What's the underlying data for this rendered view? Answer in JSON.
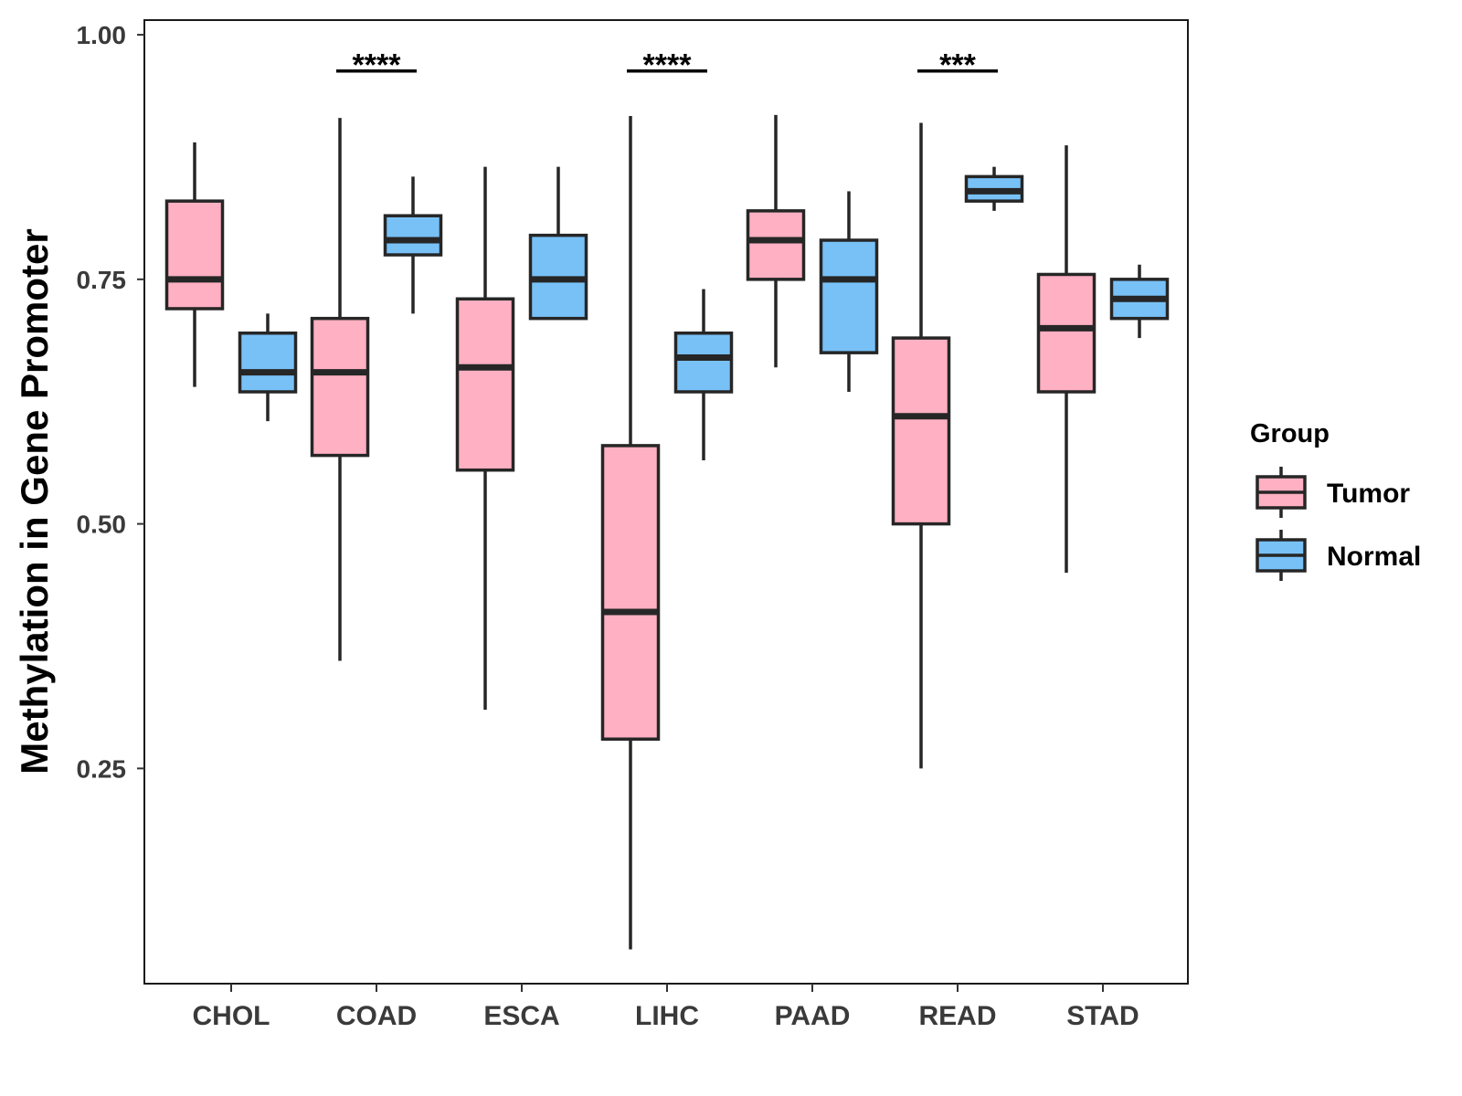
{
  "chart_data": {
    "type": "boxplot",
    "title": "",
    "xlabel": "",
    "ylabel": "Methylation in Gene Promoter",
    "ylim": [
      0.03,
      1.015
    ],
    "yticks": [
      0.25,
      0.5,
      0.75,
      1.0
    ],
    "ytick_labels": [
      "0.25",
      "0.50",
      "0.75",
      "1.00"
    ],
    "categories": [
      "CHOL",
      "COAD",
      "ESCA",
      "LIHC",
      "PAAD",
      "READ",
      "STAD"
    ],
    "series": [
      {
        "name": "Tumor",
        "color": "#FFB0C2",
        "boxes": [
          {
            "category": "CHOL",
            "min": 0.64,
            "q1": 0.72,
            "median": 0.75,
            "q3": 0.83,
            "max": 0.89
          },
          {
            "category": "COAD",
            "min": 0.36,
            "q1": 0.57,
            "median": 0.655,
            "q3": 0.71,
            "max": 0.915
          },
          {
            "category": "ESCA",
            "min": 0.31,
            "q1": 0.555,
            "median": 0.66,
            "q3": 0.73,
            "max": 0.865
          },
          {
            "category": "LIHC",
            "min": 0.065,
            "q1": 0.28,
            "median": 0.41,
            "q3": 0.58,
            "max": 0.917
          },
          {
            "category": "PAAD",
            "min": 0.66,
            "q1": 0.75,
            "median": 0.79,
            "q3": 0.82,
            "max": 0.918
          },
          {
            "category": "READ",
            "min": 0.25,
            "q1": 0.5,
            "median": 0.61,
            "q3": 0.69,
            "max": 0.91
          },
          {
            "category": "STAD",
            "min": 0.45,
            "q1": 0.635,
            "median": 0.7,
            "q3": 0.755,
            "max": 0.887
          }
        ]
      },
      {
        "name": "Normal",
        "color": "#78C1F7",
        "boxes": [
          {
            "category": "CHOL",
            "min": 0.605,
            "q1": 0.635,
            "median": 0.655,
            "q3": 0.695,
            "max": 0.715
          },
          {
            "category": "COAD",
            "min": 0.715,
            "q1": 0.775,
            "median": 0.79,
            "q3": 0.815,
            "max": 0.855
          },
          {
            "category": "ESCA",
            "min": null,
            "q1": 0.71,
            "median": 0.75,
            "q3": 0.795,
            "max": 0.865
          },
          {
            "category": "LIHC",
            "min": 0.565,
            "q1": 0.635,
            "median": 0.67,
            "q3": 0.695,
            "max": 0.74
          },
          {
            "category": "PAAD",
            "min": 0.635,
            "q1": 0.675,
            "median": 0.75,
            "q3": 0.79,
            "max": 0.84
          },
          {
            "category": "READ",
            "min": 0.82,
            "q1": 0.83,
            "median": 0.84,
            "q3": 0.855,
            "max": 0.865
          },
          {
            "category": "STAD",
            "min": 0.69,
            "q1": 0.71,
            "median": 0.73,
            "q3": 0.75,
            "max": 0.765
          }
        ]
      }
    ],
    "significance": [
      {
        "category": "COAD",
        "label": "****"
      },
      {
        "category": "LIHC",
        "label": "****"
      },
      {
        "category": "READ",
        "label": "***"
      }
    ],
    "significance_y": 0.963,
    "legend": {
      "title": "Group",
      "position": "right",
      "entries": [
        "Tumor",
        "Normal"
      ]
    },
    "grid": false
  }
}
